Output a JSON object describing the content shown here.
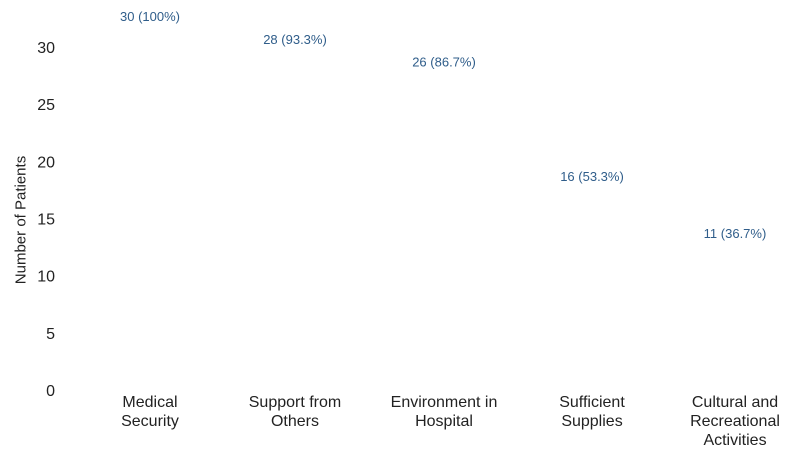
{
  "chart_data": {
    "type": "bar",
    "ylabel": "Number of Patients",
    "xlabel": "",
    "ylim": [
      0,
      30
    ],
    "yticks": [
      0,
      5,
      10,
      15,
      20,
      25,
      30
    ],
    "grid": false,
    "categories": [
      "Medical Security",
      "Support from Others",
      "Environment in Hospital",
      "Sufficient Supplies",
      "Cultural and Recreational Activities"
    ],
    "category_lines": [
      [
        "Medical",
        "Security"
      ],
      [
        "Support from",
        "Others"
      ],
      [
        "Environment in",
        "Hospital"
      ],
      [
        "Sufficient",
        "Supplies"
      ],
      [
        "Cultural and",
        "Recreational",
        "Activities"
      ]
    ],
    "values": [
      30,
      28,
      26,
      16,
      11
    ],
    "data_labels": [
      "30 (100%)",
      "28 (93.3%)",
      "26 (86.7%)",
      "16 (53.3%)",
      "11 (36.7%)"
    ],
    "colors": {
      "label": "#2f5d8a",
      "text": "#222222"
    }
  }
}
